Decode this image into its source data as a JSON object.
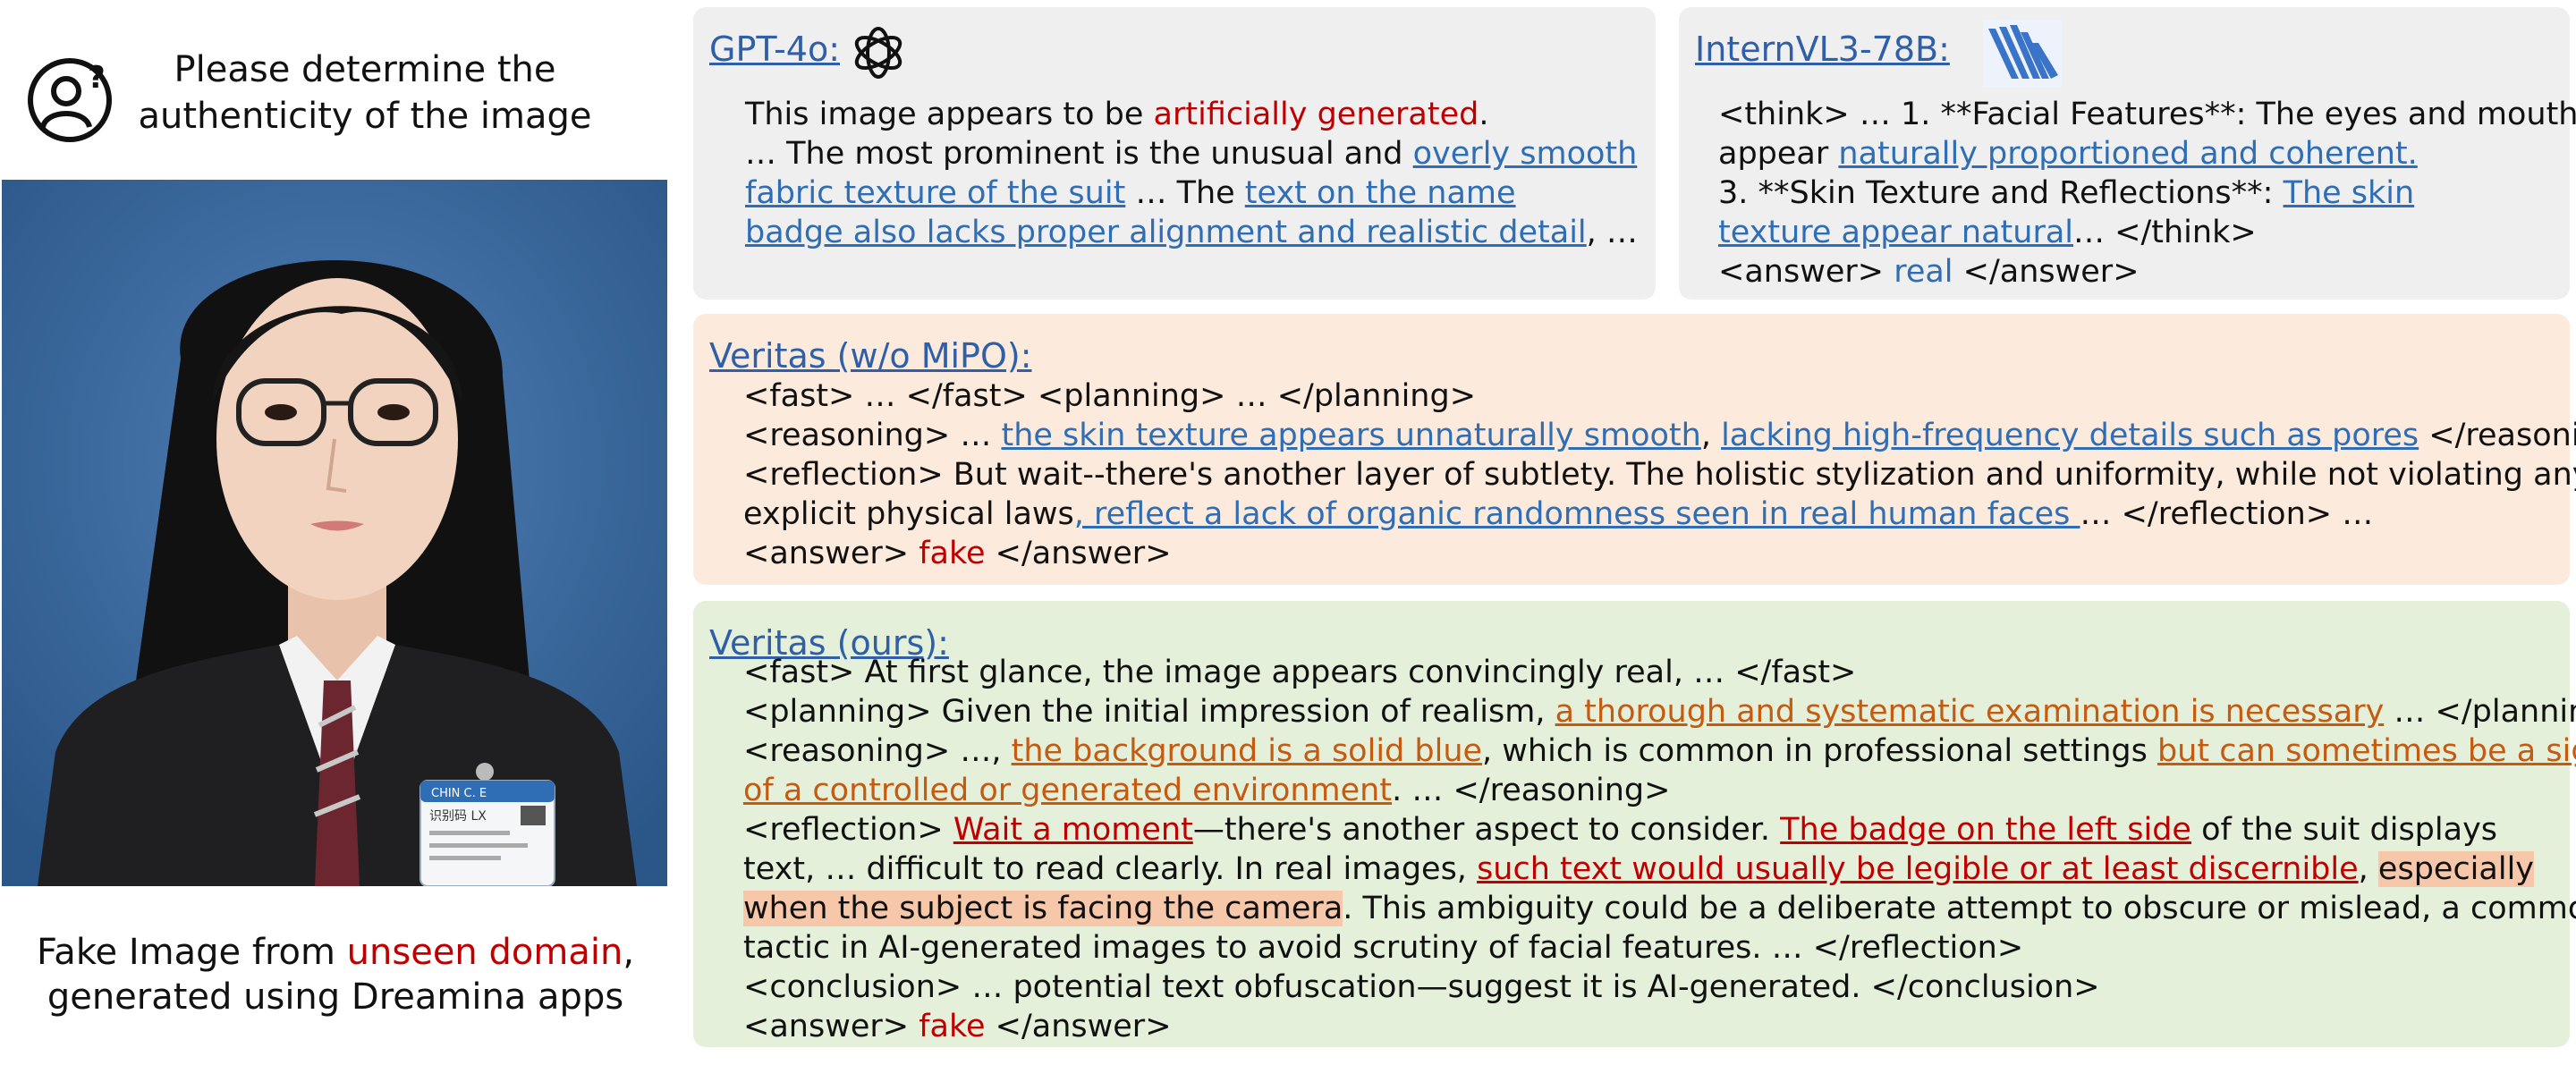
{
  "question": {
    "line1": "Please determine the",
    "line2": "authenticity of the image",
    "icon": "user-question-icon"
  },
  "caption": {
    "prefix": "Fake Image from ",
    "highlight": "unseen domain",
    "suffix": ",",
    "line2": "generated using Dreamina apps"
  },
  "photo": {
    "badge_line1": "CHIN C. E",
    "badge_line2": "识别码 LX"
  },
  "gpt": {
    "title": "GPT-4o:",
    "logo": "openai-logo",
    "l1a": "This image appears to be ",
    "l1b": "artificially generated",
    "l1c": ".",
    "l2a": "… The most prominent is the unusual and ",
    "l2b": "overly smooth",
    "l3a": "fabric texture of the suit",
    "l3b": " … The ",
    "l3c": "text on the name",
    "l4a": "badge also lacks proper alignment and realistic detail",
    "l4b": ", …"
  },
  "intern": {
    "title": "InternVL3-78B:",
    "logo": "internvl-logo",
    "l1": "<think> … 1. **Facial Features**: The eyes and mouth",
    "l2a": "appear ",
    "l2b": "naturally proportioned and coherent.",
    "l3a": "3. **Skin Texture and Reflections**: ",
    "l3b": "The skin",
    "l4a": "texture appear natural",
    "l4b": "… </think>",
    "l5a": "<answer> ",
    "l5b": "real",
    "l5c": " </answer>"
  },
  "wo": {
    "title": "Veritas (w/o MiPO):",
    "l1": "<fast> … </fast>   <planning> … </planning>",
    "l2a": "<reasoning> … ",
    "l2b": "the skin texture appears unnaturally smooth",
    "l2c": ", ",
    "l2d": "lacking high-frequency details such as pores",
    "l2e": " </reasoning>",
    "l3": "<reflection> But wait--there's another layer of subtlety. The holistic stylization and uniformity, while not violating any",
    "l4a": "explicit physical laws",
    "l4b": ", reflect a lack of organic randomness seen in real human faces ",
    "l4c": "… </reflection> …",
    "l5a": "<answer> ",
    "l5b": "fake",
    "l5c": " </answer>"
  },
  "ours": {
    "title": "Veritas (ours):",
    "l1": "<fast> At first glance, the image appears convincingly real, … </fast>",
    "l2a": "<planning> Given the initial impression of realism, ",
    "l2b": "a thorough and systematic examination is necessary",
    "l2c": " … </planning>",
    "l3a": "<reasoning> …, ",
    "l3b": "the background is a solid blue",
    "l3c": ", which is common in professional settings ",
    "l3d": "but can sometimes be a sign",
    "l4a": "of a controlled or generated environment",
    "l4b": ". … </reasoning>",
    "l5a": "<reflection> ",
    "l5b": "Wait a moment",
    "l5c": "—there's another aspect to consider. ",
    "l5d": "The badge on the left side",
    "l5e": " of the suit displays",
    "l6a": "text, … difficult to read clearly. In real images, ",
    "l6b": "such text would usually be legible or at least discernible",
    "l6c": ", ",
    "l6d": "especially",
    "l7a": "when the subject is facing the camera",
    "l7b": ". This ambiguity could be a deliberate attempt to obscure or mislead, a common",
    "l8": "tactic in AI-generated images to avoid scrutiny of facial features. … </reflection>",
    "l9": "<conclusion> … potential text obfuscation—suggest it is AI-generated. </conclusion>",
    "l10a": "<answer> ",
    "l10b": "fake",
    "l10c": " </answer>"
  }
}
